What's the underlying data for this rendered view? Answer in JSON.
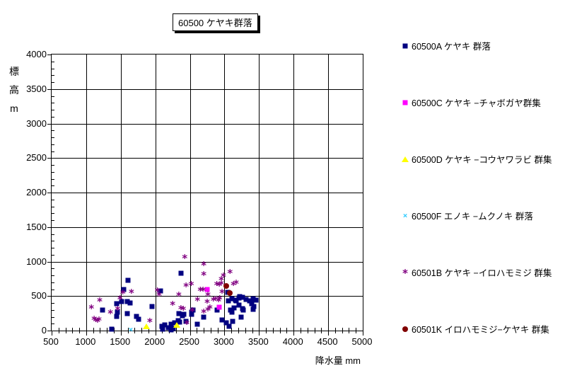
{
  "title": "60500 ケヤキ群落",
  "axes": {
    "x": {
      "label": "降水量 mm",
      "min": 500,
      "max": 5000,
      "major_step": 500,
      "minor_step": 100,
      "tick_labels": [
        "500",
        "1000",
        "1500",
        "2000",
        "2500",
        "3000",
        "3500",
        "4000",
        "4500",
        "5000"
      ]
    },
    "y": {
      "label": "標高m",
      "label_stacked": "標\n高\nm",
      "min": 0,
      "max": 4000,
      "major_step": 500,
      "minor_step": 100,
      "tick_labels": [
        "4000",
        "3500",
        "3000",
        "2500",
        "2000",
        "1500",
        "1000",
        "500",
        "0"
      ]
    }
  },
  "legend": {
    "position": "right",
    "items": [
      {
        "id": "60500A",
        "label": "60500A ケヤキ 群落",
        "marker": "square",
        "color": "#000080"
      },
      {
        "id": "60500C",
        "label": "60500C ケヤキ −チャボガヤ群集",
        "marker": "square",
        "color": "#FF00FF"
      },
      {
        "id": "60500D",
        "label": "60500D ケヤキ −コウヤワラビ 群集",
        "marker": "triangle",
        "color": "#FFFF00"
      },
      {
        "id": "60500F",
        "label": "60500F エノキ −ムクノキ 群落",
        "marker": "x",
        "color": "#33CCFF"
      },
      {
        "id": "60501B",
        "label": "60501B ケヤキ −イロハモミジ 群集",
        "marker": "asterisk",
        "color": "#800080"
      },
      {
        "id": "60501K",
        "label": "60501K イロハモミジ−ケヤキ 群集",
        "marker": "circle",
        "color": "#800000"
      }
    ]
  },
  "chart_data": {
    "type": "scatter",
    "title": "60500 ケヤキ群落",
    "xlabel": "降水量 mm",
    "ylabel": "標高m",
    "xlim": [
      500,
      5000
    ],
    "ylim": [
      0,
      4000
    ],
    "grid": true,
    "legend_position": "right",
    "series": [
      {
        "name": "60500A ケヤキ 群落",
        "marker": "square",
        "color": "#000080",
        "points": [
          [
            1370,
            20
          ],
          [
            1240,
            300
          ],
          [
            1450,
            265
          ],
          [
            1440,
            205
          ],
          [
            1600,
            730
          ],
          [
            1545,
            600
          ],
          [
            1440,
            390
          ],
          [
            1510,
            420
          ],
          [
            1595,
            420
          ],
          [
            1635,
            400
          ],
          [
            1595,
            245
          ],
          [
            1730,
            205
          ],
          [
            1760,
            165
          ],
          [
            1950,
            350
          ],
          [
            2075,
            575
          ],
          [
            2100,
            65
          ],
          [
            2140,
            85
          ],
          [
            2190,
            45
          ],
          [
            2230,
            90
          ],
          [
            2110,
            25
          ],
          [
            2255,
            30
          ],
          [
            2280,
            110
          ],
          [
            2230,
            15
          ],
          [
            2340,
            245
          ],
          [
            2390,
            215
          ],
          [
            2415,
            235
          ],
          [
            2330,
            140
          ],
          [
            2350,
            125
          ],
          [
            2445,
            135
          ],
          [
            2610,
            90
          ],
          [
            2700,
            195
          ],
          [
            2520,
            270
          ],
          [
            2550,
            295
          ],
          [
            2530,
            235
          ],
          [
            2370,
            830
          ],
          [
            2895,
            295
          ],
          [
            2960,
            150
          ],
          [
            3030,
            110
          ],
          [
            3070,
            60
          ],
          [
            3120,
            135
          ],
          [
            3240,
            195
          ],
          [
            3050,
            550
          ],
          [
            3055,
            430
          ],
          [
            3105,
            465
          ],
          [
            3155,
            440
          ],
          [
            3210,
            470
          ],
          [
            3260,
            480
          ],
          [
            3310,
            455
          ],
          [
            3360,
            430
          ],
          [
            3410,
            465
          ],
          [
            3460,
            445
          ],
          [
            3210,
            370
          ],
          [
            3140,
            330
          ],
          [
            3085,
            300
          ],
          [
            3260,
            320
          ],
          [
            3110,
            265
          ],
          [
            3390,
            390
          ],
          [
            3430,
            350
          ],
          [
            3410,
            310
          ],
          [
            3270,
            300
          ],
          [
            3170,
            430
          ],
          [
            3220,
            490
          ]
        ]
      },
      {
        "name": "60500C ケヤキ −チャボガヤ群集",
        "marker": "square",
        "color": "#FF00FF",
        "points": [
          [
            2755,
            600
          ],
          [
            2920,
            335
          ]
        ]
      },
      {
        "name": "60500D ケヤキ −コウヤワラビ 群集",
        "marker": "triangle",
        "color": "#FFFF00",
        "points": [
          [
            1870,
            60
          ],
          [
            2310,
            85
          ]
        ]
      },
      {
        "name": "60500F エノキ −ムクノキ 群落",
        "marker": "x",
        "color": "#33CCFF",
        "points": [
          [
            1645,
            15
          ]
        ]
      },
      {
        "name": "60501B ケヤキ −イロハモミジ 群集",
        "marker": "asterisk",
        "color": "#800080",
        "points": [
          [
            1075,
            330
          ],
          [
            1195,
            435
          ],
          [
            1350,
            255
          ],
          [
            1115,
            160
          ],
          [
            1140,
            145
          ],
          [
            1165,
            130
          ],
          [
            1185,
            155
          ],
          [
            1455,
            310
          ],
          [
            1490,
            465
          ],
          [
            1530,
            545
          ],
          [
            1655,
            555
          ],
          [
            1920,
            135
          ],
          [
            2055,
            510
          ],
          [
            2030,
            575
          ],
          [
            2340,
            510
          ],
          [
            2250,
            380
          ],
          [
            2370,
            320
          ],
          [
            2405,
            310
          ],
          [
            2455,
            105
          ],
          [
            2535,
            290
          ],
          [
            2425,
            1060
          ],
          [
            2445,
            650
          ],
          [
            2520,
            670
          ],
          [
            2610,
            445
          ],
          [
            2650,
            580
          ],
          [
            2690,
            585
          ],
          [
            2700,
            950
          ],
          [
            2700,
            810
          ],
          [
            2700,
            270
          ],
          [
            2750,
            415
          ],
          [
            2760,
            515
          ],
          [
            2760,
            300
          ],
          [
            2790,
            330
          ],
          [
            2840,
            445
          ],
          [
            2870,
            455
          ],
          [
            2890,
            665
          ],
          [
            2925,
            660
          ],
          [
            2955,
            680
          ],
          [
            2915,
            430
          ],
          [
            2930,
            460
          ],
          [
            2955,
            740
          ],
          [
            2985,
            790
          ],
          [
            2965,
            550
          ],
          [
            3080,
            840
          ],
          [
            3130,
            665
          ],
          [
            3170,
            690
          ]
        ]
      },
      {
        "name": "60501K イロハモミジ−ケヤキ 群集",
        "marker": "circle",
        "color": "#800000",
        "points": [
          [
            3030,
            650
          ],
          [
            3080,
            545
          ]
        ]
      }
    ]
  }
}
